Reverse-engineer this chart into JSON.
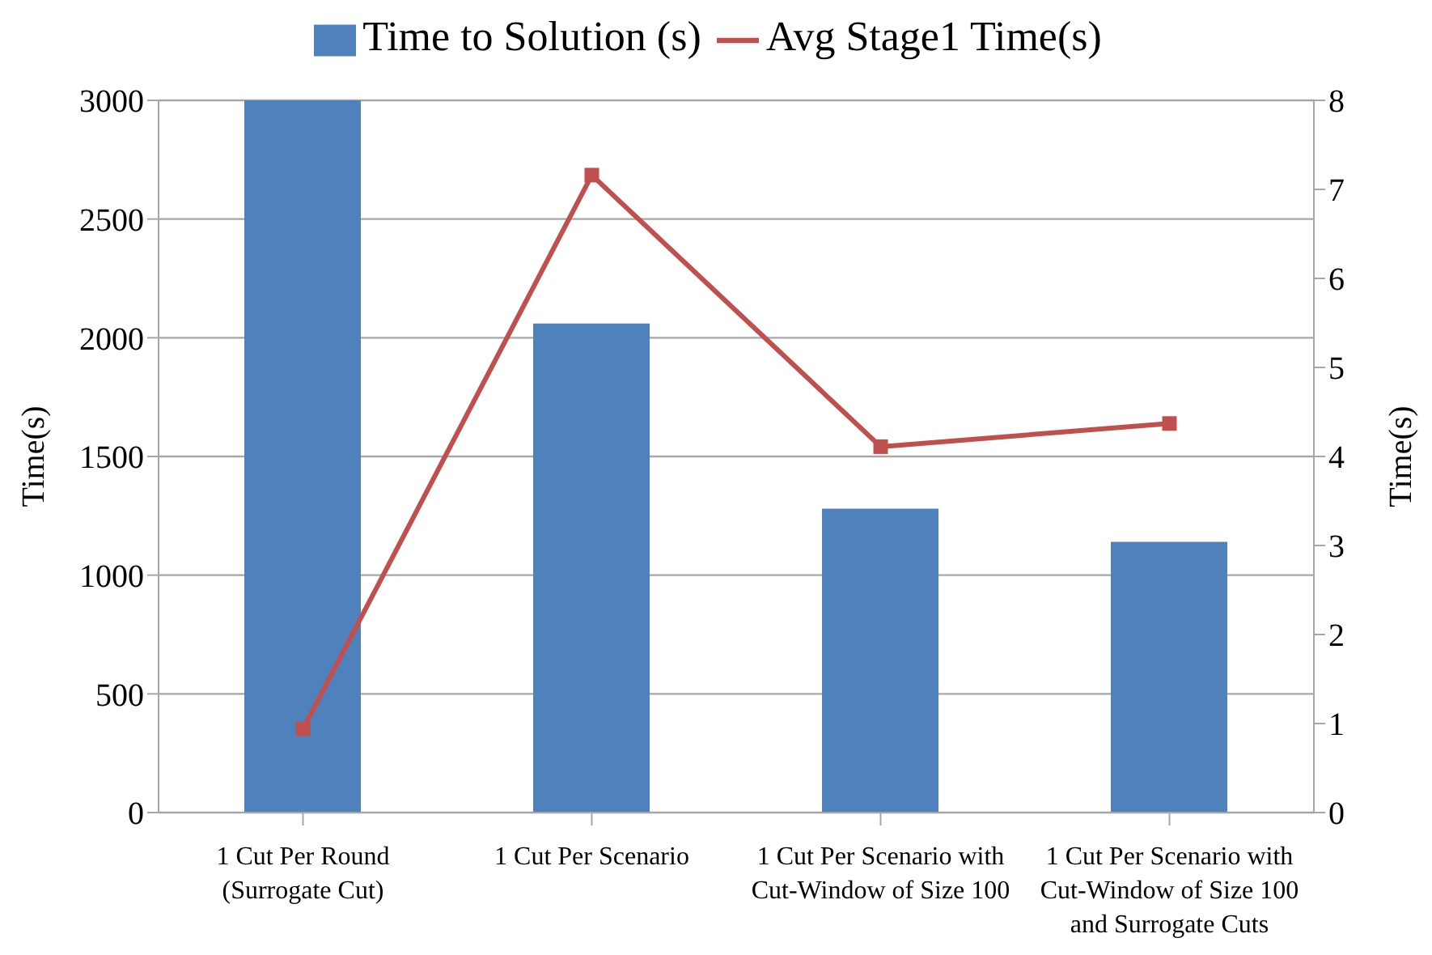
{
  "chart_data": {
    "type": "bar",
    "categories": [
      "1 Cut Per Round (Surrogate Cut)",
      "1 Cut Per Scenario",
      "1 Cut Per Scenario with Cut-Window of Size 100",
      "1 Cut Per Scenario with Cut-Window of Size 100 and Surrogate Cuts"
    ],
    "series": [
      {
        "name": "Time to Solution (s)",
        "color": "#4f81bd",
        "values": [
          3000,
          2060,
          1280,
          1140
        ]
      },
      {
        "name": "Avg Stage1 Time(s)",
        "type": "line",
        "axis": "y2",
        "color": "#c0504d",
        "marker": "square",
        "values": [
          0.94,
          7.16,
          4.11,
          4.37
        ]
      }
    ],
    "ylabel": "Time(s)",
    "y2label": "Time(s)",
    "ylim": [
      0,
      3000
    ],
    "yticks": [
      0,
      500,
      1000,
      1500,
      2000,
      2500,
      3000
    ],
    "y2lim": [
      0,
      8
    ],
    "y2ticks": [
      0,
      1,
      2,
      3,
      4,
      5,
      6,
      7,
      8
    ],
    "grid": "y",
    "legend": "top"
  }
}
